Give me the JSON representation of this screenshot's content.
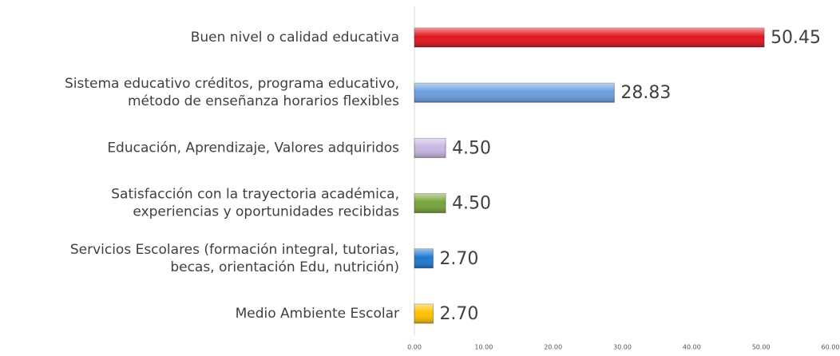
{
  "chart_data": {
    "type": "bar",
    "orientation": "horizontal",
    "categories": [
      "Buen nivel o calidad educativa",
      "Sistema educativo créditos, programa educativo,\nmétodo de enseñanza horarios flexibles",
      "Educación, Aprendizaje, Valores adquiridos",
      "Satisfacción con la trayectoria académica,\nexperiencias y oportunidades recibidas",
      "Servicios Escolares (formación integral, tutorias,\nbecas, orientación Edu, nutrición)",
      "Medio Ambiente Escolar"
    ],
    "values": [
      50.45,
      28.83,
      4.5,
      4.5,
      2.7,
      2.7
    ],
    "value_labels": [
      "50.45",
      "28.83",
      "4.50",
      "4.50",
      "2.70",
      "2.70"
    ],
    "colors": [
      "#e0141e",
      "#6a9ee0",
      "#c9b6e4",
      "#77a33a",
      "#1f77d0",
      "#ffc000"
    ],
    "xlim": [
      0,
      60
    ],
    "xticks": [
      {
        "value": 0,
        "label": "0.00"
      },
      {
        "value": 10,
        "label": "10.00"
      },
      {
        "value": 20,
        "label": "20.00"
      },
      {
        "value": 30,
        "label": "30.00"
      },
      {
        "value": 40,
        "label": "40.00"
      },
      {
        "value": 50,
        "label": "50.00"
      },
      {
        "value": 60,
        "label": "60.00"
      }
    ],
    "grid": false
  }
}
